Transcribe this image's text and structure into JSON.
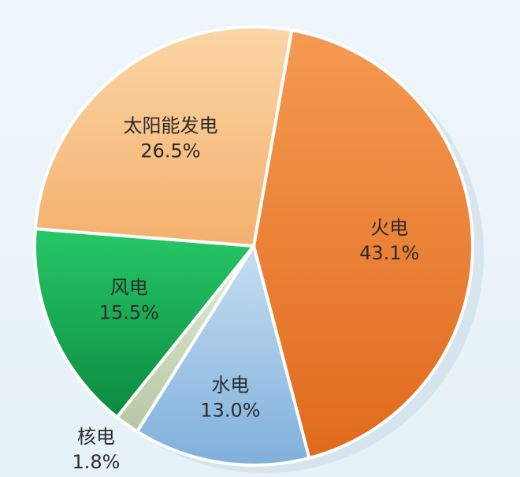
{
  "chart_data": {
    "type": "pie",
    "slices": [
      {
        "label": "火电",
        "value": 43.1,
        "display": "43.1%",
        "color_light": "#f59a52",
        "color_dark": "#e06a1c"
      },
      {
        "label": "水电",
        "value": 13.0,
        "display": "13.0%",
        "color_light": "#c6def1",
        "color_dark": "#7fb0db"
      },
      {
        "label": "核电",
        "value": 1.8,
        "display": "1.8%",
        "color_light": "#e4ecd8",
        "color_dark": "#b7c7a4"
      },
      {
        "label": "风电",
        "value": 15.5,
        "display": "15.5%",
        "color_light": "#27c867",
        "color_dark": "#0c8a3f"
      },
      {
        "label": "太阳能发电",
        "value": 26.5,
        "display": "26.5%",
        "color_light": "#fbd6a6",
        "color_dark": "#f3b06d"
      }
    ],
    "start_angle_deg": 10,
    "direction": "clockwise"
  }
}
